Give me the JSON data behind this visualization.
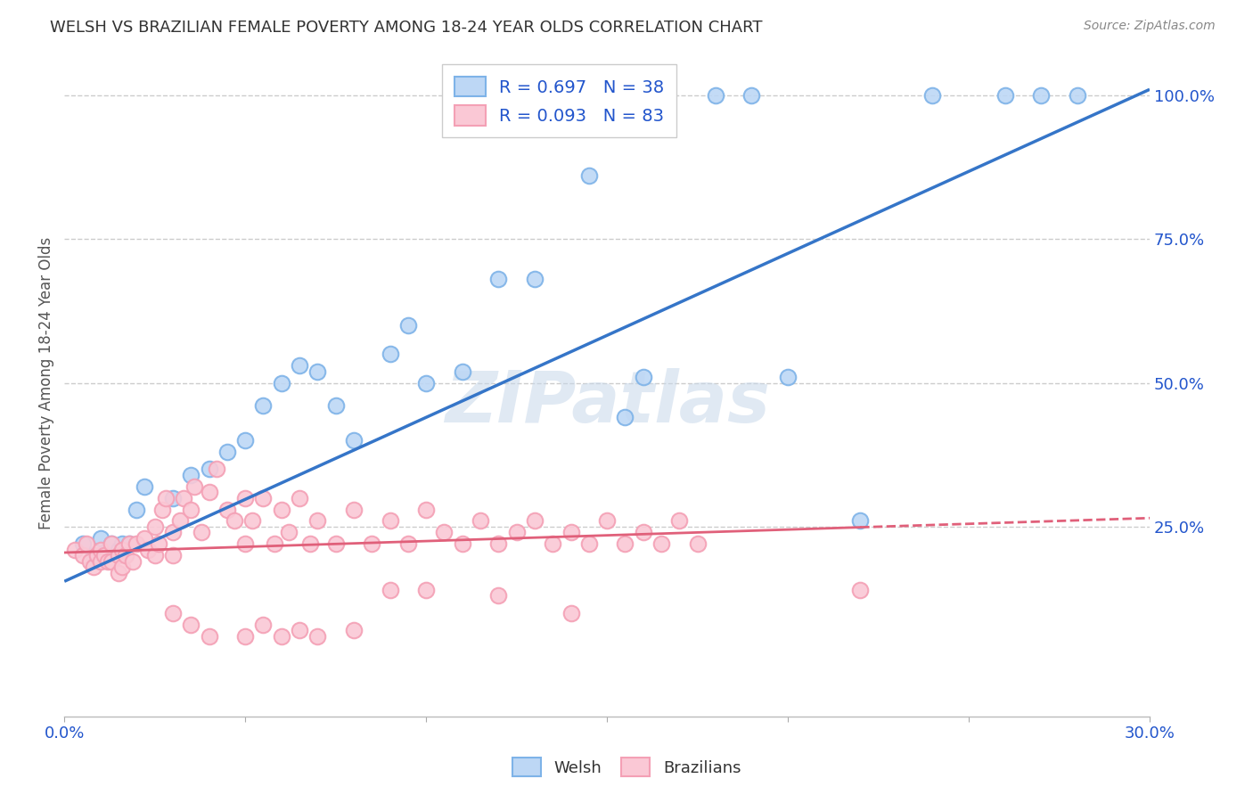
{
  "title": "WELSH VS BRAZILIAN FEMALE POVERTY AMONG 18-24 YEAR OLDS CORRELATION CHART",
  "source": "Source: ZipAtlas.com",
  "ylabel": "Female Poverty Among 18-24 Year Olds",
  "right_yticks": [
    "100.0%",
    "75.0%",
    "50.0%",
    "25.0%"
  ],
  "right_ytick_vals": [
    1.0,
    0.75,
    0.5,
    0.25
  ],
  "xlim": [
    0.0,
    0.3
  ],
  "ylim": [
    -0.08,
    1.08
  ],
  "welsh_R": "0.697",
  "welsh_N": "38",
  "brazilian_R": "0.093",
  "brazilian_N": "83",
  "welsh_color": "#7EB3E8",
  "welsh_fill": "#BDD7F5",
  "brazilian_color": "#F4A0B5",
  "brazilian_fill": "#FAC8D5",
  "line_welsh_color": "#3575C8",
  "line_brazil_color": "#E0607A",
  "legend_text_color": "#2255CC",
  "welsh_scatter_x": [
    0.005,
    0.008,
    0.01,
    0.012,
    0.013,
    0.015,
    0.016,
    0.018,
    0.02,
    0.022,
    0.03,
    0.035,
    0.04,
    0.045,
    0.05,
    0.055,
    0.06,
    0.065,
    0.07,
    0.075,
    0.08,
    0.09,
    0.095,
    0.1,
    0.11,
    0.12,
    0.13,
    0.145,
    0.155,
    0.16,
    0.18,
    0.19,
    0.2,
    0.22,
    0.24,
    0.26,
    0.27,
    0.28
  ],
  "welsh_scatter_y": [
    0.22,
    0.2,
    0.23,
    0.21,
    0.22,
    0.21,
    0.22,
    0.22,
    0.28,
    0.32,
    0.3,
    0.34,
    0.35,
    0.38,
    0.4,
    0.46,
    0.5,
    0.53,
    0.52,
    0.46,
    0.4,
    0.55,
    0.6,
    0.5,
    0.52,
    0.68,
    0.68,
    0.86,
    0.44,
    0.51,
    1.0,
    1.0,
    0.51,
    0.26,
    1.0,
    1.0,
    1.0,
    1.0
  ],
  "welsh_line_x": [
    0.0,
    0.3
  ],
  "welsh_line_y": [
    0.155,
    1.01
  ],
  "brazilian_scatter_x": [
    0.003,
    0.005,
    0.006,
    0.007,
    0.008,
    0.009,
    0.01,
    0.01,
    0.011,
    0.012,
    0.013,
    0.013,
    0.015,
    0.015,
    0.016,
    0.016,
    0.017,
    0.018,
    0.019,
    0.02,
    0.022,
    0.023,
    0.025,
    0.025,
    0.026,
    0.027,
    0.028,
    0.03,
    0.03,
    0.032,
    0.033,
    0.035,
    0.036,
    0.038,
    0.04,
    0.042,
    0.045,
    0.047,
    0.05,
    0.05,
    0.052,
    0.055,
    0.058,
    0.06,
    0.062,
    0.065,
    0.068,
    0.07,
    0.075,
    0.08,
    0.085,
    0.09,
    0.095,
    0.1,
    0.105,
    0.11,
    0.115,
    0.12,
    0.125,
    0.13,
    0.135,
    0.14,
    0.145,
    0.15,
    0.155,
    0.16,
    0.165,
    0.17,
    0.175,
    0.03,
    0.035,
    0.04,
    0.05,
    0.055,
    0.06,
    0.065,
    0.07,
    0.08,
    0.09,
    0.1,
    0.12,
    0.14,
    0.22
  ],
  "brazilian_scatter_y": [
    0.21,
    0.2,
    0.22,
    0.19,
    0.18,
    0.2,
    0.21,
    0.19,
    0.2,
    0.19,
    0.22,
    0.19,
    0.2,
    0.17,
    0.21,
    0.18,
    0.2,
    0.22,
    0.19,
    0.22,
    0.23,
    0.21,
    0.25,
    0.2,
    0.22,
    0.28,
    0.3,
    0.24,
    0.2,
    0.26,
    0.3,
    0.28,
    0.32,
    0.24,
    0.31,
    0.35,
    0.28,
    0.26,
    0.3,
    0.22,
    0.26,
    0.3,
    0.22,
    0.28,
    0.24,
    0.3,
    0.22,
    0.26,
    0.22,
    0.28,
    0.22,
    0.26,
    0.22,
    0.28,
    0.24,
    0.22,
    0.26,
    0.22,
    0.24,
    0.26,
    0.22,
    0.24,
    0.22,
    0.26,
    0.22,
    0.24,
    0.22,
    0.26,
    0.22,
    0.1,
    0.08,
    0.06,
    0.06,
    0.08,
    0.06,
    0.07,
    0.06,
    0.07,
    0.14,
    0.14,
    0.13,
    0.1,
    0.14
  ],
  "brazilian_line_x": [
    0.0,
    0.3
  ],
  "brazilian_line_y": [
    0.205,
    0.265
  ],
  "watermark": "ZIPatlas",
  "background_color": "#ffffff",
  "grid_color": "#cccccc"
}
